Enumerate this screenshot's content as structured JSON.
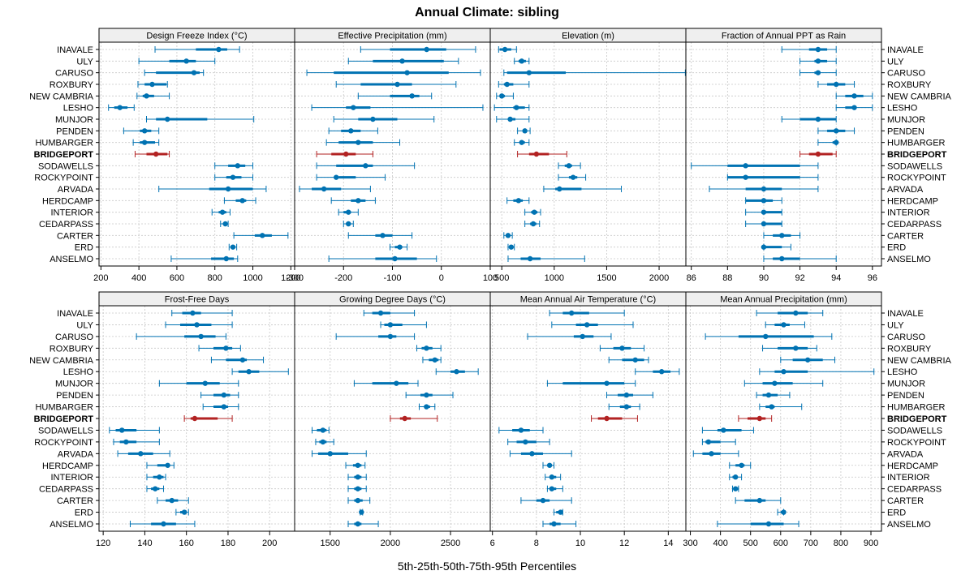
{
  "title": "Annual Climate: sibling",
  "xlabel": "5th-25th-50th-75th-95th Percentiles",
  "colors": {
    "default": "#0072B2",
    "highlight": "#B22222",
    "strip": "#EFEFEF",
    "grid": "#C8C8C8"
  },
  "sites": [
    "INAVALE",
    "ULY",
    "CARUSO",
    "ROXBURY",
    "NEW CAMBRIA",
    "LESHO",
    "MUNJOR",
    "PENDEN",
    "HUMBARGER",
    "BRIDGEPORT",
    "SODAWELLS",
    "ROCKYPOINT",
    "ARVADA",
    "HERDCAMP",
    "INTERIOR",
    "CEDARPASS",
    "CARTER",
    "ERD",
    "ANSELMO"
  ],
  "highlight_site": "BRIDGEPORT",
  "chart_data": [
    {
      "type": "percentile-interval",
      "title": "Design Freeze Index (°C)",
      "xlim": [
        190,
        1220
      ],
      "ticks": [
        200,
        400,
        600,
        800,
        1000,
        1200
      ],
      "values": [
        [
          485,
          700,
          820,
          865,
          930
        ],
        [
          400,
          560,
          650,
          700,
          800
        ],
        [
          430,
          490,
          690,
          720,
          740
        ],
        [
          395,
          430,
          470,
          545,
          550
        ],
        [
          390,
          420,
          440,
          480,
          560
        ],
        [
          240,
          270,
          300,
          340,
          375
        ],
        [
          440,
          490,
          550,
          760,
          1005
        ],
        [
          320,
          405,
          430,
          465,
          505
        ],
        [
          370,
          405,
          430,
          485,
          505
        ],
        [
          380,
          440,
          490,
          550,
          560
        ],
        [
          800,
          870,
          920,
          960,
          1000
        ],
        [
          800,
          860,
          895,
          940,
          1000
        ],
        [
          505,
          770,
          870,
          1000,
          1070
        ],
        [
          850,
          910,
          945,
          965,
          1015
        ],
        [
          785,
          820,
          840,
          860,
          880
        ],
        [
          830,
          850,
          855,
          860,
          870
        ],
        [
          900,
          1010,
          1050,
          1100,
          1185
        ],
        [
          875,
          885,
          895,
          905,
          915
        ],
        [
          570,
          780,
          860,
          900,
          920
        ]
      ]
    },
    {
      "type": "percentile-interval",
      "title": "Effective Precipitation (mm)",
      "xlim": [
        -300,
        100
      ],
      "ticks": [
        -300,
        -200,
        -100,
        0,
        100
      ],
      "values": [
        [
          -165,
          -105,
          -30,
          10,
          70
        ],
        [
          -190,
          -140,
          -80,
          5,
          35
        ],
        [
          -275,
          -220,
          -70,
          15,
          80
        ],
        [
          -215,
          -165,
          -90,
          -60,
          30
        ],
        [
          -170,
          -105,
          -60,
          -45,
          -20
        ],
        [
          -265,
          -195,
          -180,
          -145,
          85
        ],
        [
          -220,
          -170,
          -140,
          -90,
          -15
        ],
        [
          -230,
          -205,
          -185,
          -165,
          -130
        ],
        [
          -235,
          -210,
          -170,
          -140,
          -85
        ],
        [
          -255,
          -225,
          -195,
          -175,
          -140
        ],
        [
          -255,
          -215,
          -155,
          -140,
          -55
        ],
        [
          -255,
          -210,
          -215,
          -175,
          -115
        ],
        [
          -290,
          -265,
          -240,
          -205,
          -145
        ],
        [
          -225,
          -185,
          -170,
          -155,
          -135
        ],
        [
          -210,
          -200,
          -190,
          -185,
          -170
        ],
        [
          -200,
          -195,
          -190,
          -185,
          -180
        ],
        [
          -190,
          -135,
          -120,
          -100,
          -60
        ],
        [
          -105,
          -95,
          -85,
          -80,
          -70
        ],
        [
          -230,
          -135,
          -95,
          -50,
          -10
        ]
      ]
    },
    {
      "type": "percentile-interval",
      "title": "Elevation (m)",
      "xlim": [
        390,
        2255
      ],
      "ticks": [
        500,
        1000,
        1500,
        2000
      ],
      "values": [
        [
          470,
          480,
          530,
          590,
          640
        ],
        [
          620,
          660,
          690,
          730,
          760
        ],
        [
          520,
          550,
          760,
          1110,
          2250
        ],
        [
          470,
          520,
          550,
          610,
          760
        ],
        [
          450,
          500,
          500,
          530,
          610
        ],
        [
          430,
          610,
          640,
          720,
          760
        ],
        [
          450,
          560,
          580,
          630,
          760
        ],
        [
          650,
          700,
          720,
          740,
          770
        ],
        [
          620,
          680,
          690,
          720,
          760
        ],
        [
          650,
          760,
          830,
          950,
          1120
        ],
        [
          1040,
          1100,
          1140,
          1170,
          1250
        ],
        [
          1040,
          1140,
          1180,
          1220,
          1300
        ],
        [
          900,
          1010,
          1050,
          1260,
          1640
        ],
        [
          550,
          610,
          660,
          700,
          760
        ],
        [
          720,
          780,
          810,
          840,
          870
        ],
        [
          720,
          770,
          800,
          830,
          860
        ],
        [
          520,
          540,
          560,
          580,
          600
        ],
        [
          560,
          580,
          590,
          600,
          620
        ],
        [
          560,
          680,
          770,
          870,
          1290
        ]
      ]
    },
    {
      "type": "percentile-interval",
      "title": "Fraction of Annual PPT as Rain",
      "xlim": [
        85.7,
        96.5
      ],
      "ticks": [
        86,
        88,
        90,
        92,
        94,
        96
      ],
      "values": [
        [
          91,
          92.5,
          93,
          93.5,
          94
        ],
        [
          92,
          92.8,
          93,
          93.5,
          94
        ],
        [
          92,
          92.8,
          93,
          93,
          94
        ],
        [
          93,
          93.5,
          94,
          94.5,
          95
        ],
        [
          94,
          94.5,
          95,
          95.5,
          96
        ],
        [
          94,
          94.5,
          95,
          95,
          96
        ],
        [
          91,
          92,
          93,
          94,
          94
        ],
        [
          93,
          93.5,
          94,
          94.5,
          95
        ],
        [
          93,
          93.8,
          94,
          94,
          94
        ],
        [
          92,
          92.5,
          93,
          93.8,
          94
        ],
        [
          86,
          88,
          89,
          92,
          93
        ],
        [
          88,
          88,
          89,
          92,
          93
        ],
        [
          87,
          89,
          90,
          91,
          93
        ],
        [
          89,
          89,
          90,
          90.5,
          91
        ],
        [
          89,
          90,
          90,
          91,
          91
        ],
        [
          89,
          90,
          90,
          91,
          91
        ],
        [
          90,
          90.5,
          91,
          91.5,
          92
        ],
        [
          90,
          90,
          90,
          91,
          91.5
        ],
        [
          90,
          90.5,
          91,
          92,
          94
        ]
      ]
    },
    {
      "type": "percentile-interval",
      "title": "Frost-Free Days",
      "xlim": [
        118,
        212
      ],
      "ticks": [
        120,
        140,
        160,
        180,
        200
      ],
      "values": [
        [
          153,
          158,
          163,
          167,
          182
        ],
        [
          150,
          157,
          165,
          172,
          182
        ],
        [
          136,
          159,
          167,
          174,
          179
        ],
        [
          166,
          173,
          179,
          182,
          186
        ],
        [
          172,
          179,
          187,
          189,
          197
        ],
        [
          182,
          185,
          190,
          195,
          209
        ],
        [
          147,
          160,
          169,
          176,
          185
        ],
        [
          167,
          173,
          178,
          181,
          185
        ],
        [
          168,
          173,
          178,
          180,
          185
        ],
        [
          159,
          162,
          164,
          175,
          182
        ],
        [
          123,
          126,
          129,
          136,
          147
        ],
        [
          125,
          128,
          131,
          136,
          147
        ],
        [
          127,
          132,
          138,
          144,
          152
        ],
        [
          141,
          146,
          151,
          152,
          154
        ],
        [
          141,
          144,
          147,
          149,
          150
        ],
        [
          141,
          143,
          145,
          147,
          149
        ],
        [
          146,
          150,
          153,
          156,
          161
        ],
        [
          155,
          157,
          159,
          160,
          161
        ],
        [
          133,
          143,
          149,
          155,
          164
        ]
      ]
    },
    {
      "type": "percentile-interval",
      "title": "Growing Degree Days (°C)",
      "xlim": [
        1205,
        2830
      ],
      "ticks": [
        1500,
        2000,
        2500
      ],
      "values": [
        [
          1780,
          1850,
          1920,
          2000,
          2200
        ],
        [
          1920,
          1950,
          2000,
          2100,
          2300
        ],
        [
          1550,
          1900,
          2000,
          2050,
          2200
        ],
        [
          2220,
          2260,
          2300,
          2350,
          2420
        ],
        [
          2270,
          2320,
          2370,
          2400,
          2420
        ],
        [
          2380,
          2500,
          2550,
          2620,
          2730
        ],
        [
          1700,
          1850,
          2050,
          2150,
          2230
        ],
        [
          2130,
          2250,
          2300,
          2350,
          2520
        ],
        [
          2240,
          2280,
          2300,
          2330,
          2370
        ],
        [
          2000,
          2080,
          2120,
          2170,
          2390
        ],
        [
          1350,
          1390,
          1440,
          1470,
          1490
        ],
        [
          1380,
          1410,
          1440,
          1470,
          1530
        ],
        [
          1350,
          1400,
          1500,
          1650,
          1800
        ],
        [
          1630,
          1690,
          1730,
          1760,
          1790
        ],
        [
          1650,
          1700,
          1730,
          1760,
          1800
        ],
        [
          1650,
          1700,
          1730,
          1760,
          1800
        ],
        [
          1650,
          1700,
          1730,
          1770,
          1830
        ],
        [
          1750,
          1750,
          1760,
          1770,
          1770
        ],
        [
          1650,
          1700,
          1730,
          1760,
          1900
        ]
      ]
    },
    {
      "type": "percentile-interval",
      "title": "Mean Annual Air Temperature (°C)",
      "xlim": [
        5.9,
        14.8
      ],
      "ticks": [
        6,
        8,
        10,
        12,
        14
      ],
      "values": [
        [
          8.6,
          9.2,
          9.6,
          10.4,
          12
        ],
        [
          8.7,
          9.8,
          10.3,
          10.8,
          12.4
        ],
        [
          7.6,
          9.7,
          10.1,
          10.6,
          11.4
        ],
        [
          10.9,
          11.5,
          11.9,
          12.3,
          12.9
        ],
        [
          11.3,
          11.9,
          12.5,
          12.9,
          13.1
        ],
        [
          12.5,
          13.3,
          13.7,
          14.1,
          14.5
        ],
        [
          8.5,
          9.2,
          11.2,
          12,
          12.5
        ],
        [
          11.2,
          11.7,
          12.1,
          12.4,
          13.3
        ],
        [
          11.3,
          11.8,
          12.1,
          12.3,
          12.7
        ],
        [
          10.5,
          10.8,
          11.2,
          11.9,
          12.6
        ],
        [
          6.3,
          6.9,
          7.3,
          7.7,
          8.3
        ],
        [
          6.7,
          7.1,
          7.5,
          8,
          8.6
        ],
        [
          6.8,
          7.3,
          7.8,
          8.3,
          9.6
        ],
        [
          8.3,
          8.5,
          8.6,
          8.7,
          8.8
        ],
        [
          8.4,
          8.6,
          8.7,
          8.9,
          9.1
        ],
        [
          8.5,
          8.6,
          8.7,
          8.9,
          9.2
        ],
        [
          7.3,
          8,
          8.3,
          8.6,
          9.6
        ],
        [
          8.8,
          8.9,
          9.1,
          9.1,
          9.2
        ],
        [
          8.3,
          8.6,
          8.8,
          9.1,
          9.8
        ]
      ]
    },
    {
      "type": "percentile-interval",
      "title": "Mean Annual Precipitation (mm)",
      "xlim": [
        285,
        935
      ],
      "ticks": [
        300,
        400,
        500,
        600,
        700,
        800,
        900
      ],
      "values": [
        [
          520,
          590,
          650,
          690,
          740
        ],
        [
          550,
          580,
          610,
          630,
          680
        ],
        [
          350,
          460,
          550,
          710,
          770
        ],
        [
          540,
          590,
          650,
          690,
          720
        ],
        [
          600,
          640,
          690,
          740,
          780
        ],
        [
          530,
          580,
          610,
          690,
          910
        ],
        [
          480,
          540,
          580,
          640,
          740
        ],
        [
          520,
          540,
          560,
          590,
          630
        ],
        [
          530,
          550,
          570,
          580,
          670
        ],
        [
          460,
          490,
          530,
          550,
          570
        ],
        [
          340,
          390,
          410,
          470,
          510
        ],
        [
          340,
          350,
          360,
          400,
          450
        ],
        [
          310,
          340,
          370,
          400,
          460
        ],
        [
          430,
          450,
          470,
          480,
          500
        ],
        [
          430,
          440,
          450,
          450,
          470
        ],
        [
          440,
          450,
          450,
          460,
          460
        ],
        [
          450,
          480,
          530,
          550,
          600
        ],
        [
          590,
          600,
          610,
          610,
          610
        ],
        [
          390,
          500,
          560,
          610,
          660
        ]
      ]
    }
  ]
}
